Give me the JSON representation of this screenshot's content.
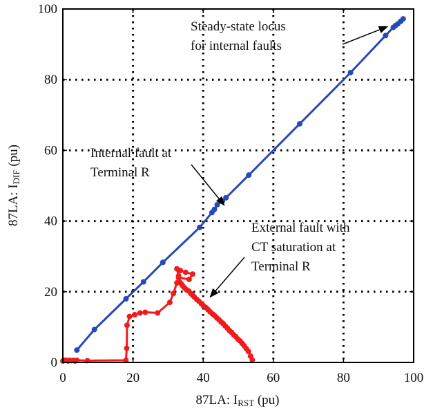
{
  "chart_data": {
    "type": "line",
    "xlabel": "87LA: I",
    "xlabel_sub": "RST",
    "xlabel_unit": " (pu)",
    "ylabel": "87LA: I",
    "ylabel_sub": "DIF",
    "ylabel_unit": " (pu)",
    "xlim": [
      0,
      100
    ],
    "ylim": [
      0,
      100
    ],
    "xticks": [
      0,
      20,
      40,
      60,
      80,
      100
    ],
    "yticks": [
      0,
      20,
      40,
      60,
      80,
      100
    ],
    "grid": true,
    "grid_style": "dotted",
    "series": [
      {
        "color": "#2649b8",
        "points": [
          [
            4,
            3.5
          ],
          [
            9,
            9.3
          ],
          [
            18,
            18
          ],
          [
            23,
            22.8
          ],
          [
            28.5,
            28.3
          ],
          [
            39,
            38.2
          ],
          [
            42.5,
            42.4
          ],
          [
            43.2,
            43.3
          ],
          [
            44,
            44.6
          ],
          [
            45.5,
            45.7
          ],
          [
            46.5,
            46.6
          ],
          [
            53,
            53
          ],
          [
            67.5,
            67.5
          ],
          [
            82,
            82
          ],
          [
            92,
            92.5
          ],
          [
            94.2,
            94.8
          ],
          [
            94.8,
            95.3
          ],
          [
            95.5,
            95.8
          ],
          [
            96.3,
            96.5
          ],
          [
            97,
            97.2
          ]
        ]
      },
      {
        "color": "#ee1c1c",
        "points": [
          [
            0,
            0.4
          ],
          [
            0.5,
            0.6
          ],
          [
            1,
            0.6
          ],
          [
            1.5,
            0.4
          ],
          [
            2,
            0.6
          ],
          [
            2.5,
            0.5
          ],
          [
            3,
            0.6
          ],
          [
            3.5,
            0.4
          ],
          [
            4,
            0.6
          ],
          [
            7,
            0.5
          ],
          [
            18,
            0.6
          ],
          [
            18.2,
            4
          ],
          [
            18.3,
            10.5
          ],
          [
            19,
            13
          ],
          [
            20.5,
            13.5
          ],
          [
            22,
            14
          ],
          [
            23.5,
            14.2
          ],
          [
            27,
            14
          ],
          [
            30.5,
            17
          ],
          [
            31.5,
            19.5
          ],
          [
            32.5,
            22.5
          ],
          [
            33,
            24.5
          ],
          [
            32.5,
            26.5
          ],
          [
            33.5,
            26
          ],
          [
            35,
            25.5
          ],
          [
            37,
            25
          ],
          [
            36,
            23.5
          ],
          [
            33,
            24
          ],
          [
            33.2,
            22.8
          ],
          [
            33.7,
            22.3
          ],
          [
            34.2,
            21.6
          ],
          [
            34.8,
            21
          ],
          [
            35.3,
            20.5
          ],
          [
            35.9,
            20.2
          ],
          [
            36.5,
            19.5
          ],
          [
            37,
            19
          ],
          [
            37.5,
            18.5
          ],
          [
            38.2,
            17.8
          ],
          [
            38.8,
            17.3
          ],
          [
            39.5,
            16.6
          ],
          [
            40.1,
            16
          ],
          [
            40.8,
            15.5
          ],
          [
            41.4,
            14.9
          ],
          [
            42,
            14.3
          ],
          [
            42.7,
            13.7
          ],
          [
            43.3,
            13.2
          ],
          [
            43.9,
            12.6
          ],
          [
            44.5,
            12.1
          ],
          [
            45.1,
            11.5
          ],
          [
            45.7,
            11
          ],
          [
            46.3,
            10.3
          ],
          [
            46.9,
            9.7
          ],
          [
            47.5,
            9
          ],
          [
            48.1,
            8.5
          ],
          [
            48.7,
            7.8
          ],
          [
            49.3,
            7.3
          ],
          [
            49.9,
            6.6
          ],
          [
            50.5,
            6.1
          ],
          [
            51.1,
            5.4
          ],
          [
            51.7,
            4.7
          ],
          [
            52.3,
            3.9
          ],
          [
            52.9,
            3.1
          ],
          [
            53.5,
            1.8
          ],
          [
            54,
            0.7
          ]
        ]
      }
    ],
    "annotations": [
      {
        "id": "steady_state",
        "lines": [
          "Steady-state locus",
          "for internal faults"
        ],
        "arrow_to": [
          92.5,
          95
        ]
      },
      {
        "id": "internal",
        "lines": [
          "Internal fault at",
          "Terminal R"
        ],
        "arrow_to": [
          46,
          44.5
        ]
      },
      {
        "id": "external",
        "lines": [
          "External fault with",
          "CT saturation at",
          "Terminal R"
        ],
        "arrow_to": [
          42,
          18.5
        ]
      }
    ]
  }
}
